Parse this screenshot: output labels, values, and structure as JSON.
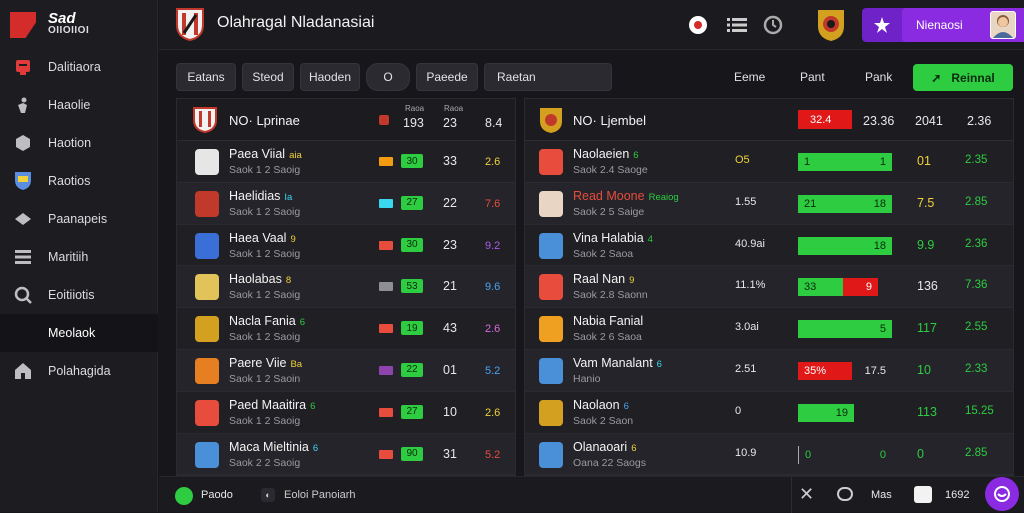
{
  "brand": {
    "title": "Sad",
    "subtitle": "OIIOIIOI"
  },
  "sidebar": {
    "items": [
      {
        "label": "Dalitiaora",
        "icon": "trophy-icon",
        "color": "#e03a3a"
      },
      {
        "label": "Haaolie",
        "icon": "figure-icon",
        "color": "#bdbdc2"
      },
      {
        "label": "Haotion",
        "icon": "box-icon",
        "color": "#bdbdc2"
      },
      {
        "label": "Raotios",
        "icon": "shield-icon",
        "color": "#5b8de0"
      },
      {
        "label": "Paanapeis",
        "icon": "diamond-icon",
        "color": "#bdbdc2"
      },
      {
        "label": "Maritiih",
        "icon": "stack-icon",
        "color": "#bdbdc2"
      },
      {
        "label": "Eoitiiotis",
        "icon": "search-icon",
        "color": "#bdbdc2"
      },
      {
        "label": "Meolaok",
        "icon": "none",
        "color": "#bdbdc2"
      },
      {
        "label": "Polahagida",
        "icon": "home-icon",
        "color": "#bdbdc2"
      }
    ]
  },
  "topbar": {
    "title": "Olahragal Nladanasiai",
    "user": "Nienaosi"
  },
  "filters": [
    "Eatans",
    "Steod",
    "Haoden",
    "O",
    "Paeede",
    "Raetan"
  ],
  "col_heads": [
    "Eeme",
    "Pant",
    "Pank"
  ],
  "action_label": "Reinnal",
  "left_panel": {
    "head": {
      "title": "NO· Lprinae",
      "c1_top": "Raoa",
      "c1": "193",
      "c2_top": "Raoa",
      "c2": "23",
      "c3": "8.4"
    },
    "rows": [
      {
        "name": "Paea Viial",
        "tag": "aia",
        "tag_color": "#f0d23a",
        "sub": "Saok 1 2 Saoig",
        "crest": "#e6e6e6",
        "flag": "#f39c12",
        "g": "30",
        "pts": "33",
        "pct": "2.6",
        "pct_color": "#f0d23a"
      },
      {
        "name": "Haelidias",
        "tag": "Ia",
        "tag_color": "#3ad8f0",
        "sub": "Saok 1 2 Saoig",
        "crest": "#c0392b",
        "flag": "#3ad8f0",
        "g": "27",
        "pts": "22",
        "pct": "7.6",
        "pct_color": "#e74c3c"
      },
      {
        "name": "Haea Vaal",
        "tag": "9",
        "tag_color": "#f0d23a",
        "sub": "Saok 1 2 Saoig",
        "crest": "#3a6fd8",
        "flag": "#e74c3c",
        "g": "30",
        "pts": "23",
        "pct": "9.2",
        "pct_color": "#a55eea"
      },
      {
        "name": "Haolabas",
        "tag": "8",
        "tag_color": "#f0d23a",
        "sub": "Saok 1 2 Saoig",
        "crest": "#e2c35a",
        "flag": "#8e8e95",
        "g": "53",
        "pts": "21",
        "pct": "9.6",
        "pct_color": "#4aa3f0"
      },
      {
        "name": "Nacla Fania",
        "tag": "6",
        "tag_color": "#2ecc40",
        "sub": "Saok 1 2 Saoig",
        "crest": "#d4a020",
        "flag": "#e74c3c",
        "g": "19",
        "pts": "43",
        "pct": "2.6",
        "pct_color": "#d96ae0"
      },
      {
        "name": "Paere Viie",
        "tag": "Ba",
        "tag_color": "#f0d23a",
        "sub": "Saok 1 2 Saoin",
        "crest": "#e67e22",
        "flag": "#8e44ad",
        "g": "22",
        "pts": "01",
        "pct": "5.2",
        "pct_color": "#4aa3f0"
      },
      {
        "name": "Paed Maaitira",
        "tag": "6",
        "tag_color": "#2ecc40",
        "sub": "Saok 1 2 Saoig",
        "crest": "#e74c3c",
        "flag": "#e74c3c",
        "g": "27",
        "pts": "10",
        "pct": "2.6",
        "pct_color": "#f0d23a"
      },
      {
        "name": "Maca Mieltinia",
        "tag": "6",
        "tag_color": "#3ad8f0",
        "sub": "Saok 2 2 Saoig",
        "crest": "#4a90d9",
        "flag": "#e74c3c",
        "g": "90",
        "pts": "31",
        "pct": "5.2",
        "pct_color": "#e74c3c"
      }
    ]
  },
  "right_panel": {
    "head": {
      "title": "NO· Ljembel",
      "red": "32.4",
      "v1": "23.36",
      "v2": "2041",
      "v3": "2.36"
    },
    "rows": [
      {
        "name": "Naolaeien",
        "tag": "6",
        "tag_color": "#2ecc40",
        "sub": "Saok 2.4 Saoge",
        "crest": "#e74c3c",
        "stat": "O5",
        "stat_color": "#f0d23a",
        "bar": {
          "kind": "green",
          "width": 94,
          "left_label": "1",
          "right_label": "1"
        },
        "v2": "01",
        "v2_color": "#f0d23a",
        "v3": "2.35",
        "v3_color": "#2ecc40"
      },
      {
        "name": "Read Moone",
        "name_color": "#e74c3c",
        "tag": "Reaiog",
        "tag_color": "#2ecc40",
        "sub": "Saok 2 5 Saige",
        "crest": "#e8d5c4",
        "stat": "1.55",
        "stat_color": "#e8e8ea",
        "bar": {
          "kind": "green",
          "width": 94,
          "left_label": "21",
          "right_label": "18"
        },
        "v2": "7.5",
        "v2_color": "#f0d23a",
        "v3": "2.85",
        "v3_color": "#2ecc40"
      },
      {
        "name": "Vina Halabia",
        "tag": "4",
        "tag_color": "#2ecc40",
        "sub": "Saok 2 Saoa",
        "crest": "#4a90d9",
        "stat": "40.9ai",
        "stat_color": "#e8e8ea",
        "bar": {
          "kind": "green",
          "width": 94,
          "left_label": "",
          "right_label": "18"
        },
        "v2": "9.9",
        "v2_color": "#2ecc40",
        "v3": "2.36",
        "v3_color": "#2ecc40"
      },
      {
        "name": "Raal Nan",
        "tag": "9",
        "tag_color": "#f0d23a",
        "sub": "Saok 2.8 Saonn",
        "crest": "#e74c3c",
        "stat": "11.1%",
        "stat_color": "#e8e8ea",
        "bar": {
          "kind": "split",
          "green": 45,
          "red": 35,
          "left_label": "33",
          "right_label": "9"
        },
        "v2": "136",
        "v2_color": "#e8e8ea",
        "v3": "7.36",
        "v3_color": "#2ecc40"
      },
      {
        "name": "Nabia Fanial",
        "tag": "",
        "tag_color": "#e8e8ea",
        "sub": "Saok 2 6 Saoa",
        "crest": "#f0a020",
        "stat": "3.0ai",
        "stat_color": "#e8e8ea",
        "bar": {
          "kind": "green",
          "width": 94,
          "left_label": "",
          "right_label": "5"
        },
        "v2": "117",
        "v2_color": "#2ecc40",
        "v3": "2.55",
        "v3_color": "#2ecc40"
      },
      {
        "name": "Vam Manalant",
        "tag": "6",
        "tag_color": "#3ad8f0",
        "sub": "Hanio",
        "crest": "#4a90d9",
        "stat": "2.51",
        "stat_color": "#e8e8ea",
        "bar": {
          "kind": "red",
          "width": 54,
          "left_label": "35%",
          "right_label": "17.5"
        },
        "v2": "10",
        "v2_color": "#2ecc40",
        "v3": "2.33",
        "v3_color": "#2ecc40"
      },
      {
        "name": "Naolaon",
        "tag": "6",
        "tag_color": "#4aa3f0",
        "sub": "Saok 2 Saon",
        "crest": "#d4a020",
        "stat": "0",
        "stat_color": "#e8e8ea",
        "bar": {
          "kind": "green",
          "width": 56,
          "left_label": "",
          "right_label": "19"
        },
        "v2": "113",
        "v2_color": "#2ecc40",
        "v3": "15.25",
        "v3_color": "#2ecc40"
      },
      {
        "name": "Olanaoari",
        "tag": "6",
        "tag_color": "#f0d23a",
        "sub": "Oana 22 Saogs",
        "crest": "#4a90d9",
        "stat": "10.9",
        "stat_color": "#e8e8ea",
        "bar": {
          "kind": "outline",
          "width": 94,
          "left_label": "0",
          "right_label": "0"
        },
        "v2": "0",
        "v2_color": "#2ecc40",
        "v3": "2.85",
        "v3_color": "#2ecc40"
      }
    ]
  },
  "bottombar": {
    "left": "Paodo",
    "mid": "Eoloi Panoiarh",
    "right1": "Mas",
    "right2": "1692"
  }
}
